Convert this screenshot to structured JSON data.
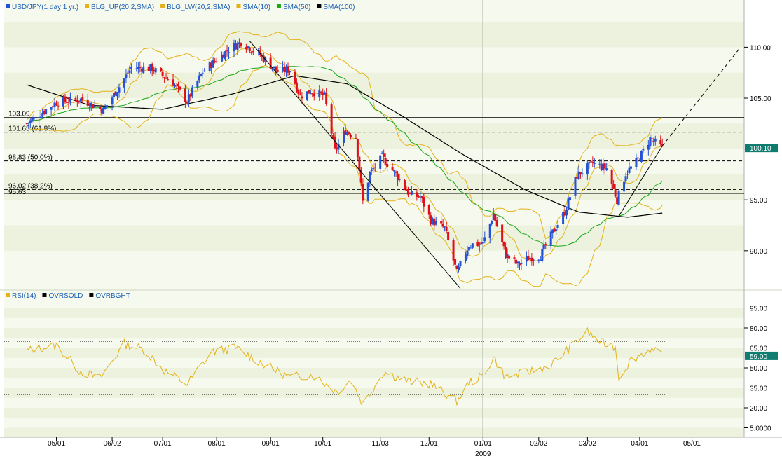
{
  "colors": {
    "up_candle": "#2452d6",
    "down_candle": "#e0101a",
    "bollinger": "#e3b21b",
    "sma10": "#e3b21b",
    "sma50": "#1aa81a",
    "sma100": "#000000",
    "rsi": "#e3b21b",
    "band_light": "#f6f9ee",
    "band_dark": "#ecf2dd",
    "badge": "#0f7c70"
  },
  "chart_data": [
    {
      "type": "candlestick",
      "title": "",
      "legend": [
        {
          "label": "USD/JPY(1 day  1 yr.)",
          "color": "#2452d6"
        },
        {
          "label": "BLG_UP(20,2,SMA)",
          "color": "#e3b21b"
        },
        {
          "label": "BLG_LW(20,2,SMA)",
          "color": "#e3b21b"
        },
        {
          "label": "SMA(10)",
          "color": "#e3b21b"
        },
        {
          "label": "SMA(50)",
          "color": "#1aa81a"
        },
        {
          "label": "SMA(100)",
          "color": "#000000"
        }
      ],
      "ylim": [
        86.2,
        113.4
      ],
      "y_ticks": [
        "110.00",
        "105.00",
        "100.00",
        "95.00",
        "90.00"
      ],
      "y_tick_values": [
        110,
        105,
        100,
        95,
        90
      ],
      "current_price": "100.10",
      "current_price_value": 100.1,
      "x_tick_labels": [
        "05/01",
        "06/02",
        "07/01",
        "08/01",
        "09/01",
        "10/01",
        "11/03",
        "12/01",
        "01/01",
        "02/02",
        "03/02",
        "04/01",
        "05/01"
      ],
      "x_year_label": "2009",
      "levels": [
        {
          "label": "103.09",
          "value": 103.09,
          "style": "solid"
        },
        {
          "label": "101.65 (61.8%)",
          "value": 101.65,
          "style": "dashed"
        },
        {
          "label": "98.83 (50.0%)",
          "value": 98.83,
          "style": "dashed"
        },
        {
          "label": "96.02 (38.2%)",
          "value": 96.02,
          "style": "dashed"
        },
        {
          "label": "95.63",
          "value": 95.63,
          "style": "solid"
        }
      ],
      "anchors": [
        {
          "date": "2008-04-14",
          "close": 102.5
        },
        {
          "date": "2008-05-01",
          "close": 104.6
        },
        {
          "date": "2008-05-15",
          "close": 104.9
        },
        {
          "date": "2008-05-28",
          "close": 103.8
        },
        {
          "date": "2008-06-09",
          "close": 106.9
        },
        {
          "date": "2008-06-13",
          "close": 108.0
        },
        {
          "date": "2008-06-25",
          "close": 107.9
        },
        {
          "date": "2008-07-07",
          "close": 106.5
        },
        {
          "date": "2008-07-15",
          "close": 104.7
        },
        {
          "date": "2008-07-24",
          "close": 107.6
        },
        {
          "date": "2008-08-08",
          "close": 109.8
        },
        {
          "date": "2008-08-15",
          "close": 110.5
        },
        {
          "date": "2008-08-25",
          "close": 109.4
        },
        {
          "date": "2008-09-05",
          "close": 107.6
        },
        {
          "date": "2008-09-12",
          "close": 107.8
        },
        {
          "date": "2008-09-18",
          "close": 105.2
        },
        {
          "date": "2008-09-24",
          "close": 105.7
        },
        {
          "date": "2008-10-02",
          "close": 105.2
        },
        {
          "date": "2008-10-08",
          "close": 99.8
        },
        {
          "date": "2008-10-14",
          "close": 101.8
        },
        {
          "date": "2008-10-20",
          "close": 101.2
        },
        {
          "date": "2008-10-24",
          "close": 94.8
        },
        {
          "date": "2008-10-28",
          "close": 97.6
        },
        {
          "date": "2008-11-04",
          "close": 99.2
        },
        {
          "date": "2008-11-12",
          "close": 97.5
        },
        {
          "date": "2008-11-20",
          "close": 95.5
        },
        {
          "date": "2008-11-26",
          "close": 95.3
        },
        {
          "date": "2008-12-02",
          "close": 93.0
        },
        {
          "date": "2008-12-10",
          "close": 92.2
        },
        {
          "date": "2008-12-17",
          "close": 87.8
        },
        {
          "date": "2008-12-24",
          "close": 90.6
        },
        {
          "date": "2009-01-01",
          "close": 90.7
        },
        {
          "date": "2009-01-07",
          "close": 93.6
        },
        {
          "date": "2009-01-14",
          "close": 89.6
        },
        {
          "date": "2009-01-21",
          "close": 88.6
        },
        {
          "date": "2009-01-27",
          "close": 89.3
        },
        {
          "date": "2009-02-03",
          "close": 89.5
        },
        {
          "date": "2009-02-10",
          "close": 91.8
        },
        {
          "date": "2009-02-17",
          "close": 93.8
        },
        {
          "date": "2009-02-24",
          "close": 97.4
        },
        {
          "date": "2009-03-05",
          "close": 98.6
        },
        {
          "date": "2009-03-13",
          "close": 98.1
        },
        {
          "date": "2009-03-19",
          "close": 95.0
        },
        {
          "date": "2009-03-24",
          "close": 97.6
        },
        {
          "date": "2009-03-31",
          "close": 98.9
        },
        {
          "date": "2009-04-07",
          "close": 101.0
        },
        {
          "date": "2009-04-14",
          "close": 100.1
        }
      ],
      "sma100_anchors": [
        {
          "date": "2008-04-14",
          "close": 106.3
        },
        {
          "date": "2008-05-20",
          "close": 104.3
        },
        {
          "date": "2008-07-01",
          "close": 103.9
        },
        {
          "date": "2008-08-10",
          "close": 105.4
        },
        {
          "date": "2008-09-15",
          "close": 107.2
        },
        {
          "date": "2008-10-15",
          "close": 106.4
        },
        {
          "date": "2008-11-15",
          "close": 103.3
        },
        {
          "date": "2008-12-20",
          "close": 99.5
        },
        {
          "date": "2009-01-25",
          "close": 96.0
        },
        {
          "date": "2009-02-25",
          "close": 93.8
        },
        {
          "date": "2009-03-25",
          "close": 93.3
        },
        {
          "date": "2009-04-14",
          "close": 93.7
        }
      ],
      "trendlines": [
        {
          "from": {
            "date": "2008-08-20",
            "value": 110.6
          },
          "to": {
            "date": "2008-12-19",
            "value": 86.3
          },
          "style": "solid"
        },
        {
          "from": {
            "date": "2009-03-20",
            "value": 93.4
          },
          "to": {
            "date": "2009-04-14",
            "value": 100.3
          },
          "style": "solid"
        },
        {
          "from": {
            "date": "2009-04-14",
            "value": 100.3
          },
          "to": {
            "date": "2009-05-28",
            "value": 109.8
          },
          "style": "dashed"
        }
      ],
      "markers": [
        {
          "date": "2009-01-01",
          "label": "2009"
        }
      ]
    },
    {
      "type": "line",
      "legend": [
        {
          "label": "RSI(14)",
          "color": "#e3b21b"
        },
        {
          "label": "OVRSOLD",
          "color": "#000000"
        },
        {
          "label": "OVRBGHT",
          "color": "#000000"
        }
      ],
      "ylim": [
        0,
        100
      ],
      "y_ticks": [
        "95.00",
        "80.00",
        "65.00",
        "50.00",
        "35.00",
        "20.00",
        "5.0000"
      ],
      "y_tick_values": [
        95,
        80,
        65,
        50,
        35,
        20,
        5
      ],
      "current_value": "59.00",
      "current_value_num": 59,
      "overbought": 70,
      "oversold": 30,
      "anchors": [
        {
          "date": "2008-04-14",
          "value": 63
        },
        {
          "date": "2008-05-01",
          "value": 67
        },
        {
          "date": "2008-05-14",
          "value": 48
        },
        {
          "date": "2008-05-26",
          "value": 42
        },
        {
          "date": "2008-06-09",
          "value": 68
        },
        {
          "date": "2008-06-20",
          "value": 64
        },
        {
          "date": "2008-07-02",
          "value": 48
        },
        {
          "date": "2008-07-15",
          "value": 38
        },
        {
          "date": "2008-07-29",
          "value": 62
        },
        {
          "date": "2008-08-12",
          "value": 65
        },
        {
          "date": "2008-08-29",
          "value": 52
        },
        {
          "date": "2008-09-12",
          "value": 43
        },
        {
          "date": "2008-09-25",
          "value": 45
        },
        {
          "date": "2008-10-09",
          "value": 32
        },
        {
          "date": "2008-10-17",
          "value": 41
        },
        {
          "date": "2008-10-24",
          "value": 23
        },
        {
          "date": "2008-11-05",
          "value": 47
        },
        {
          "date": "2008-11-19",
          "value": 40
        },
        {
          "date": "2008-12-02",
          "value": 38
        },
        {
          "date": "2008-12-17",
          "value": 25
        },
        {
          "date": "2008-12-24",
          "value": 39
        },
        {
          "date": "2009-01-01",
          "value": 44
        },
        {
          "date": "2009-01-07",
          "value": 58
        },
        {
          "date": "2009-01-14",
          "value": 43
        },
        {
          "date": "2009-01-27",
          "value": 47
        },
        {
          "date": "2009-02-09",
          "value": 52
        },
        {
          "date": "2009-02-24",
          "value": 70
        },
        {
          "date": "2009-03-02",
          "value": 77
        },
        {
          "date": "2009-03-10",
          "value": 69
        },
        {
          "date": "2009-03-18",
          "value": 66
        },
        {
          "date": "2009-03-20",
          "value": 43
        },
        {
          "date": "2009-03-27",
          "value": 56
        },
        {
          "date": "2009-04-07",
          "value": 64
        },
        {
          "date": "2009-04-14",
          "value": 59
        }
      ]
    }
  ]
}
